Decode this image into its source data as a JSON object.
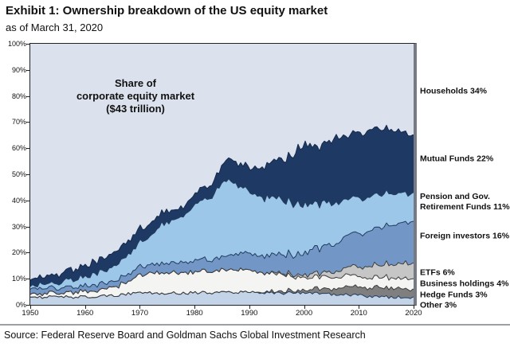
{
  "header": {
    "title": "Exhibit 1: Ownership breakdown of the US equity market",
    "subtitle": "as of March 31, 2020"
  },
  "footer": {
    "source": "Source: Federal Reserve Board and Goldman Sachs Global Investment Research"
  },
  "chart_data": {
    "type": "area",
    "stacked": true,
    "annotation": "Share of\ncorporate equity market\n($43 trillion)",
    "xlabel": "",
    "ylabel": "",
    "ylim": [
      0,
      100
    ],
    "grid": false,
    "legend_position": "right-of-plot",
    "ytick_labels": [
      "0%",
      "10%",
      "20%",
      "30%",
      "40%",
      "50%",
      "60%",
      "70%",
      "80%",
      "90%",
      "100%"
    ],
    "xtick_labels": [
      "1950",
      "1960",
      "1970",
      "1980",
      "1990",
      "2000",
      "2010",
      "2020"
    ],
    "x_years": [
      1950,
      1952,
      1954,
      1956,
      1958,
      1960,
      1962,
      1964,
      1966,
      1968,
      1970,
      1972,
      1974,
      1976,
      1978,
      1980,
      1982,
      1984,
      1986,
      1988,
      1990,
      1992,
      1994,
      1996,
      1998,
      2000,
      2002,
      2004,
      2006,
      2008,
      2010,
      2012,
      2014,
      2016,
      2018,
      2020
    ],
    "series": [
      {
        "name": "other",
        "label": "Other 3%",
        "color": "#c3d3e8",
        "line": "#223c5e",
        "values": [
          3,
          3,
          3,
          3,
          3,
          3,
          3.2,
          3.5,
          3.8,
          4.2,
          4.5,
          4.6,
          4.6,
          4.6,
          4.6,
          4.6,
          4.6,
          4.6,
          4.6,
          4.8,
          5,
          4.8,
          4.6,
          4.5,
          4.5,
          4.5,
          4.4,
          4.2,
          4,
          3.8,
          3.5,
          3.3,
          3.1,
          3,
          3,
          3
        ]
      },
      {
        "name": "hedge_funds",
        "label": "Hedge Funds 3%",
        "color": "#7f7f7f",
        "line": "#3d3d3d",
        "values": [
          0,
          0,
          0,
          0,
          0,
          0,
          0,
          0,
          0,
          0,
          0,
          0,
          0,
          0,
          0,
          0,
          0,
          0,
          0,
          0,
          0.3,
          0.4,
          0.5,
          0.6,
          0.8,
          1.2,
          1.5,
          2,
          2.5,
          3,
          3.3,
          3.4,
          3.5,
          3.4,
          3.2,
          3
        ]
      },
      {
        "name": "business_holdings",
        "label": "Business holdings 4%",
        "color": "#f4f4f2",
        "line": "#3d3d3d",
        "values": [
          1,
          1.2,
          1.4,
          1.6,
          1.8,
          2,
          2.4,
          2.8,
          3.5,
          5,
          6.5,
          7.5,
          8,
          8,
          7.8,
          7.9,
          8,
          8.5,
          8.5,
          8.4,
          8.2,
          7.5,
          7,
          6.5,
          5.5,
          4.8,
          4.5,
          4.5,
          4.4,
          4.3,
          4.2,
          4.1,
          4,
          4,
          4,
          4
        ]
      },
      {
        "name": "etfs",
        "label": "ETFs 6%",
        "color": "#c6c6c6",
        "line": "#3d3d3d",
        "values": [
          0,
          0,
          0,
          0,
          0,
          0,
          0,
          0,
          0,
          0,
          0,
          0,
          0,
          0,
          0,
          0,
          0,
          0,
          0,
          0,
          0,
          0,
          0.1,
          0.3,
          0.6,
          1,
          1.3,
          1.8,
          2.3,
          3,
          3.7,
          4.3,
          4.8,
          5.3,
          5.8,
          6
        ]
      },
      {
        "name": "foreign_investors",
        "label": "Foreign investors 16%",
        "color": "#7296c6",
        "line": "#223c5e",
        "values": [
          2,
          2,
          2,
          2,
          2,
          2,
          2.1,
          2.2,
          2.4,
          2.7,
          3,
          3.3,
          3.6,
          3.8,
          4,
          4,
          4.3,
          4.8,
          5.6,
          6.2,
          6.5,
          6.5,
          6.7,
          7,
          7.5,
          8.5,
          9.5,
          10,
          10.8,
          12,
          12.8,
          13.5,
          14.5,
          15,
          15.5,
          16
        ]
      },
      {
        "name": "pension_funds",
        "label": "Pension and Gov.\nRetirement Funds 11%",
        "color": "#9cc7e8",
        "line": "#223c5e",
        "values": [
          1,
          1.4,
          1.8,
          2.4,
          3,
          3.5,
          4.2,
          5,
          6.2,
          7.5,
          9,
          11,
          15,
          16,
          18,
          21.5,
          23,
          26,
          29.5,
          26,
          23.5,
          22.5,
          22,
          21,
          20,
          18.5,
          17.5,
          16.5,
          15.5,
          14,
          13.5,
          13,
          12.5,
          12,
          11.5,
          11
        ]
      },
      {
        "name": "mutual_funds",
        "label": "Mutual Funds 22%",
        "color": "#1e3a64",
        "line": "#16294a",
        "values": [
          2.5,
          2.8,
          3.2,
          3.6,
          4,
          4.5,
          4.8,
          5.2,
          5.5,
          5.5,
          5,
          4.8,
          4.2,
          4,
          3.6,
          4.5,
          4.5,
          5.5,
          8,
          8.5,
          9,
          11,
          13.5,
          15.5,
          18.5,
          24,
          21.5,
          22.5,
          25.5,
          24,
          25,
          25.5,
          25,
          24.5,
          23.5,
          22
        ]
      },
      {
        "name": "households",
        "label": "Households 34%",
        "color": "#dbe2ee",
        "line": "none",
        "values": [
          90.5,
          89.6,
          88.6,
          87.4,
          86.2,
          85,
          83.3,
          81.3,
          78.6,
          75.1,
          72,
          68.8,
          64.6,
          63.6,
          62,
          57.5,
          55.6,
          50.6,
          43.8,
          46.1,
          47.5,
          47.3,
          45.6,
          44.6,
          42.6,
          37.5,
          39.8,
          38.5,
          35,
          35.9,
          34,
          32.9,
          32.6,
          32.8,
          33.5,
          34
        ]
      }
    ]
  }
}
